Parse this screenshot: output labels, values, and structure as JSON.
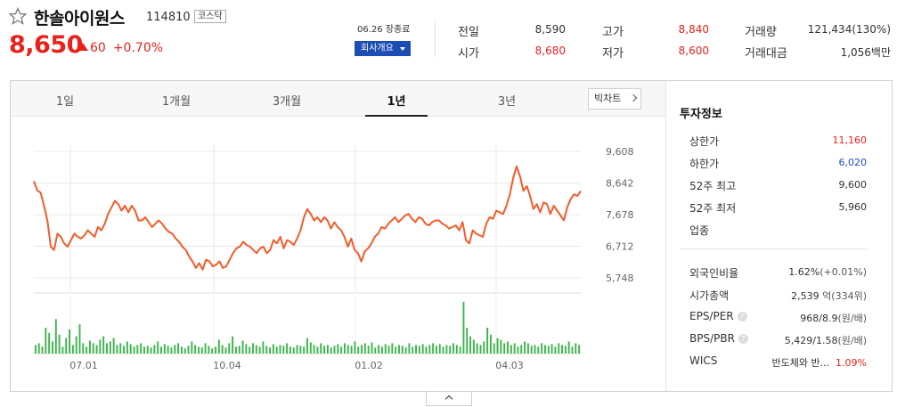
{
  "stock": {
    "name": "한솔아이원스",
    "code": "114810",
    "market": "코스닥",
    "price": "8,650",
    "change": "60",
    "change_pct": "+0.70%",
    "date_status": "06.26 장종료",
    "company_button": "회사개요"
  },
  "quote": {
    "prev_close_label": "전일",
    "prev_close": "8,590",
    "open_label": "시가",
    "open": "8,680",
    "high_label": "고가",
    "high": "8,840",
    "low_label": "저가",
    "low": "8,600",
    "volume_label": "거래량",
    "volume": "121,434(130%)",
    "trade_value_label": "거래대금",
    "trade_value": "1,056백만"
  },
  "tabs": [
    "1일",
    "1개월",
    "3개월",
    "1년",
    "3년"
  ],
  "active_tab": "1년",
  "bigchart_label": "빅차트",
  "chart_data": {
    "type": "line",
    "y_ticks": [
      "9,608",
      "8,642",
      "7,678",
      "6,712",
      "5,748"
    ],
    "ylim": [
      5748,
      9608
    ],
    "x_ticks": [
      "07.01",
      "10.04",
      "01.02",
      "04.03"
    ],
    "series": [
      {
        "values": [
          8700,
          8420,
          8350,
          7950,
          7500,
          6700,
          6600,
          7100,
          7000,
          6800,
          6700,
          6900,
          7100,
          7000,
          6950,
          7050,
          7200,
          7100,
          7000,
          7300,
          7200,
          7400,
          7700,
          7900,
          8100,
          8000,
          7800,
          7950,
          7750,
          7950,
          7800,
          7500,
          7500,
          7600,
          7450,
          7300,
          7400,
          7500,
          7400,
          7250,
          7150,
          7100,
          6950,
          6850,
          6700,
          6600,
          6400,
          6250,
          6050,
          6200,
          6000,
          6300,
          6250,
          6100,
          6150,
          6250,
          6050,
          6100,
          6300,
          6500,
          6650,
          6700,
          6850,
          6750,
          6700,
          6600,
          6500,
          6650,
          6700,
          6500,
          6600,
          6900,
          6800,
          7000,
          6650,
          6900,
          6850,
          6750,
          6950,
          7200,
          7600,
          7850,
          7700,
          7500,
          7600,
          7450,
          7600,
          7500,
          7250,
          7450,
          7300,
          7200,
          7000,
          6700,
          6950,
          6600,
          6500,
          6250,
          6550,
          6650,
          6800,
          7000,
          7100,
          7300,
          7250,
          7400,
          7500,
          7600,
          7450,
          7550,
          7650,
          7700,
          7550,
          7450,
          7600,
          7550,
          7400,
          7350,
          7450,
          7500,
          7500,
          7400,
          7350,
          7250,
          7300,
          7350,
          7200,
          7450,
          6900,
          6800,
          7200,
          7100,
          7050,
          7000,
          7400,
          7600,
          7550,
          7800,
          7750,
          7700,
          7950,
          8300,
          8800,
          9150,
          8850,
          8400,
          8550,
          8250,
          7850,
          8000,
          7750,
          8050,
          8000,
          7700,
          7950,
          7800,
          7650,
          7500,
          7900,
          8150,
          8300,
          8250,
          8400
        ]
      }
    ],
    "volume": [
      10,
      12,
      8,
      30,
      24,
      14,
      40,
      22,
      8,
      18,
      28,
      10,
      20,
      34,
      12,
      8,
      15,
      12,
      10,
      16,
      20,
      12,
      14,
      18,
      10,
      12,
      9,
      14,
      11,
      8,
      10,
      12,
      8,
      9,
      7,
      10,
      14,
      8,
      11,
      9,
      7,
      10,
      12,
      8,
      6,
      9,
      14,
      10,
      8,
      7,
      12,
      9,
      6,
      8,
      16,
      10,
      7,
      12,
      20,
      8,
      9,
      15,
      11,
      8,
      12,
      10,
      8,
      14,
      9,
      7,
      11,
      8,
      10,
      9,
      12,
      8,
      7,
      10,
      9,
      8,
      18,
      13,
      10,
      8,
      12,
      9,
      10,
      7,
      9,
      11,
      8,
      12,
      10,
      9,
      14,
      8,
      10,
      12,
      9,
      13,
      7,
      10,
      8,
      11,
      9,
      12,
      8,
      10,
      9,
      7,
      12,
      8,
      10,
      9,
      11,
      8,
      10,
      12,
      9,
      11,
      8,
      10,
      9,
      12,
      10,
      8,
      60,
      30,
      20,
      16,
      12,
      10,
      14,
      30,
      22,
      12,
      18,
      16,
      12,
      14,
      10,
      12,
      8,
      10,
      14,
      12,
      9,
      10,
      8,
      12,
      10,
      9,
      11,
      8,
      12,
      10,
      9,
      14,
      8,
      12,
      10
    ]
  },
  "info": {
    "title": "투자정보",
    "rows_a": [
      {
        "label": "상한가",
        "value": "11,160",
        "color": "red"
      },
      {
        "label": "하한가",
        "value": "6,020",
        "color": "blue"
      },
      {
        "label": "52주 최고",
        "value": "9,600",
        "color": "dark"
      },
      {
        "label": "52주 최저",
        "value": "5,960",
        "color": "dark"
      },
      {
        "label": "업종",
        "value": "",
        "color": "dark"
      }
    ],
    "foreign_label": "외국인비율",
    "foreign_value": "1.62%",
    "foreign_change": "(+0.01%)",
    "mcap_label": "시가총액",
    "mcap_value": "2,539",
    "mcap_unit": "억(334위)",
    "eps_label": "EPS/PER",
    "eps_value": "968/8.9",
    "eps_unit": "(원/배)",
    "bps_label": "BPS/PBR",
    "bps_value": "5,429/1.58",
    "bps_unit": "(원/배)",
    "wics_label": "WICS",
    "wics_value": "반도체와 반...",
    "wics_change": "1.09%"
  }
}
